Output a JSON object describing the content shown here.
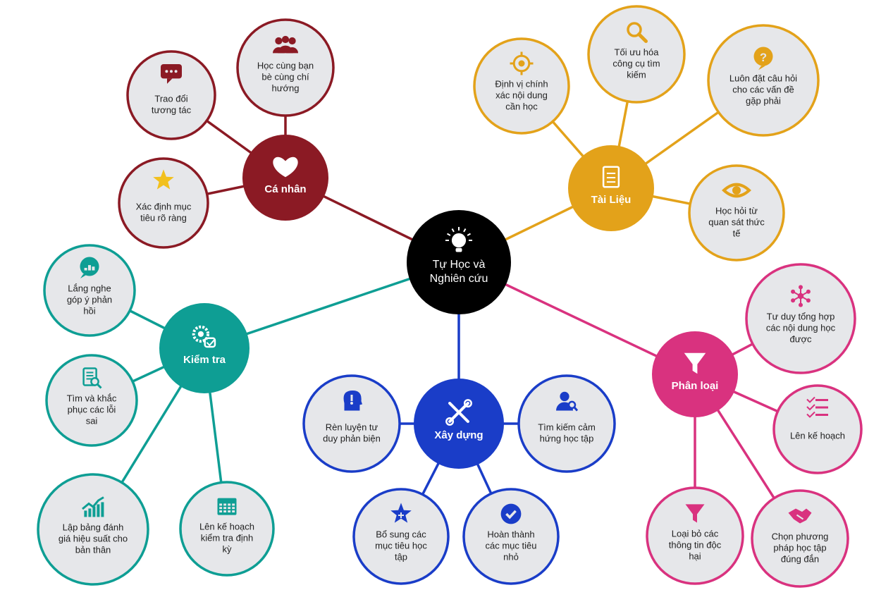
{
  "center": {
    "label_lines": [
      "Tự Học và",
      "Nghiên cứu"
    ],
    "color": "#000000",
    "icon": "lightbulb-icon"
  },
  "hubs": [
    {
      "id": "ca-nhan",
      "label": "Cá nhân",
      "color": "#8b1a24",
      "icon": "heart-icon",
      "leaves": [
        {
          "id": "trao-doi",
          "lines": [
            "Trao đổi",
            "tương tác"
          ],
          "icon": "chat-bubble-icon",
          "icon_color": "#8b1a24"
        },
        {
          "id": "hoc-cung-ban",
          "lines": [
            "Học cùng bạn",
            "bè cùng chí",
            "hướng"
          ],
          "icon": "group-icon",
          "icon_color": "#8b1a24"
        },
        {
          "id": "xac-dinh",
          "lines": [
            "Xác định mục",
            "tiêu rõ ràng"
          ],
          "icon": "star-icon",
          "icon_color": "#f2c01d"
        }
      ]
    },
    {
      "id": "tai-lieu",
      "label": "Tài Liệu",
      "color": "#e3a21a",
      "icon": "document-icon",
      "leaves": [
        {
          "id": "dinh-vi",
          "lines": [
            "Định vị chính",
            "xác nội dung",
            "cần học"
          ],
          "icon": "target-icon",
          "icon_color": "#e3a21a"
        },
        {
          "id": "toi-uu",
          "lines": [
            "Tối ưu hóa",
            "công cụ tìm",
            "kiếm"
          ],
          "icon": "magnifier-icon",
          "icon_color": "#e3a21a"
        },
        {
          "id": "luon-dat",
          "lines": [
            "Luôn đặt câu hỏi",
            "cho các vấn đề",
            "gặp phải"
          ],
          "icon": "question-bubble-icon",
          "icon_color": "#e3a21a"
        },
        {
          "id": "hoc-hoi",
          "lines": [
            "Học hỏi từ",
            "quan sát thức",
            "tế"
          ],
          "icon": "eye-icon",
          "icon_color": "#e3a21a"
        }
      ]
    },
    {
      "id": "kiem-tra",
      "label": "Kiểm tra",
      "color": "#0e9e94",
      "icon": "gears-check-icon",
      "leaves": [
        {
          "id": "lang-nghe",
          "lines": [
            "Lắng nghe",
            "góp ý phản",
            "hồi"
          ],
          "icon": "chart-bubble-icon",
          "icon_color": "#0e9e94"
        },
        {
          "id": "tim-va-khac",
          "lines": [
            "Tìm và khắc",
            "phục các lỗi",
            "sai"
          ],
          "icon": "document-search-icon",
          "icon_color": "#0e9e94"
        },
        {
          "id": "lap-bang",
          "lines": [
            "Lập bảng đánh",
            "giá hiệu suất cho",
            "bản thân"
          ],
          "icon": "line-chart-icon",
          "icon_color": "#0e9e94"
        },
        {
          "id": "len-ke-hoach-kt",
          "lines": [
            "Lên kế hoạch",
            "kiểm tra định",
            "kỳ"
          ],
          "icon": "calendar-icon",
          "icon_color": "#0e9e94"
        }
      ]
    },
    {
      "id": "xay-dung",
      "label": "Xây dựng",
      "color": "#1a3dc8",
      "icon": "tools-icon",
      "leaves": [
        {
          "id": "ren-luyen",
          "lines": [
            "Rèn luyện tư",
            "duy phản biện"
          ],
          "icon": "head-alert-icon",
          "icon_color": "#1a3dc8"
        },
        {
          "id": "tim-kiem-cam",
          "lines": [
            "Tìm kiếm cảm",
            "hứng học tập"
          ],
          "icon": "person-search-icon",
          "icon_color": "#1a3dc8"
        },
        {
          "id": "bo-sung",
          "lines": [
            "Bổ sung các",
            "mục tiêu học",
            "tập"
          ],
          "icon": "star-plus-icon",
          "icon_color": "#1a3dc8"
        },
        {
          "id": "hoan-thanh",
          "lines": [
            "Hoàn thành",
            "các mục tiêu",
            "nhỏ"
          ],
          "icon": "check-circle-icon",
          "icon_color": "#1a3dc8"
        }
      ]
    },
    {
      "id": "phan-loai",
      "label": "Phân loại",
      "color": "#d9327f",
      "icon": "funnel-icon",
      "leaves": [
        {
          "id": "tu-duy",
          "lines": [
            "Tư duy tổng hợp",
            "các nội dung học",
            "được"
          ],
          "icon": "network-icon",
          "icon_color": "#d9327f"
        },
        {
          "id": "len-ke-hoach",
          "lines": [
            "Lên kế hoạch"
          ],
          "icon": "checklist-icon",
          "icon_color": "#d9327f"
        },
        {
          "id": "loai-bo",
          "lines": [
            "Loại bỏ các",
            "thông tin độc",
            "hại"
          ],
          "icon": "funnel-icon",
          "icon_color": "#d9327f"
        },
        {
          "id": "chon-phuong",
          "lines": [
            "Chọn phương",
            "pháp học tập",
            "đúng đắn"
          ],
          "icon": "handshake-icon",
          "icon_color": "#d9327f"
        }
      ]
    }
  ]
}
